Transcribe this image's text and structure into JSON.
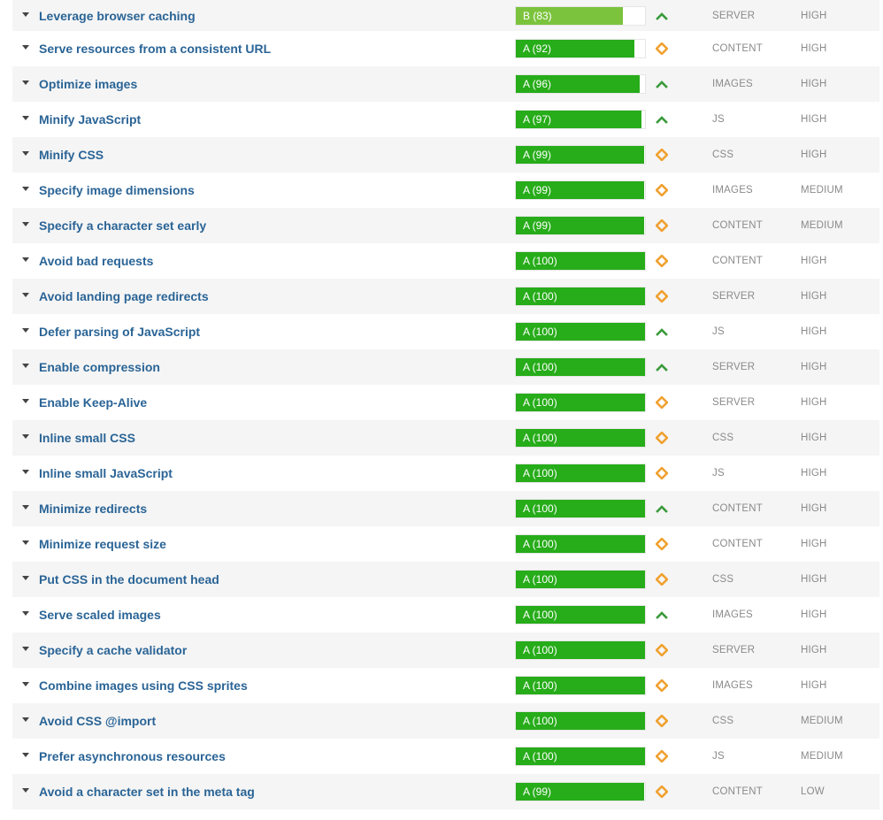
{
  "colors": {
    "grade_a": "#27ac1a",
    "grade_b": "#7cc33d",
    "trend_up": "#3a9a3a",
    "trend_neutral": "#f0a130",
    "link": "#2a6496"
  },
  "rules": [
    {
      "name": "Leverage browser caching",
      "grade": "B (83)",
      "score": 83,
      "trend": "up-arrow-icon",
      "type": "SERVER",
      "priority": "HIGH"
    },
    {
      "name": "Serve resources from a consistent URL",
      "grade": "A (92)",
      "score": 92,
      "trend": "diamond-icon",
      "type": "CONTENT",
      "priority": "HIGH"
    },
    {
      "name": "Optimize images",
      "grade": "A (96)",
      "score": 96,
      "trend": "up-arrow-icon",
      "type": "IMAGES",
      "priority": "HIGH"
    },
    {
      "name": "Minify JavaScript",
      "grade": "A (97)",
      "score": 97,
      "trend": "up-arrow-icon",
      "type": "JS",
      "priority": "HIGH"
    },
    {
      "name": "Minify CSS",
      "grade": "A (99)",
      "score": 99,
      "trend": "diamond-icon",
      "type": "CSS",
      "priority": "HIGH"
    },
    {
      "name": "Specify image dimensions",
      "grade": "A (99)",
      "score": 99,
      "trend": "diamond-icon",
      "type": "IMAGES",
      "priority": "MEDIUM"
    },
    {
      "name": "Specify a character set early",
      "grade": "A (99)",
      "score": 99,
      "trend": "diamond-icon",
      "type": "CONTENT",
      "priority": "MEDIUM"
    },
    {
      "name": "Avoid bad requests",
      "grade": "A (100)",
      "score": 100,
      "trend": "diamond-icon",
      "type": "CONTENT",
      "priority": "HIGH"
    },
    {
      "name": "Avoid landing page redirects",
      "grade": "A (100)",
      "score": 100,
      "trend": "diamond-icon",
      "type": "SERVER",
      "priority": "HIGH"
    },
    {
      "name": "Defer parsing of JavaScript",
      "grade": "A (100)",
      "score": 100,
      "trend": "up-arrow-icon",
      "type": "JS",
      "priority": "HIGH"
    },
    {
      "name": "Enable compression",
      "grade": "A (100)",
      "score": 100,
      "trend": "up-arrow-icon",
      "type": "SERVER",
      "priority": "HIGH"
    },
    {
      "name": "Enable Keep-Alive",
      "grade": "A (100)",
      "score": 100,
      "trend": "diamond-icon",
      "type": "SERVER",
      "priority": "HIGH"
    },
    {
      "name": "Inline small CSS",
      "grade": "A (100)",
      "score": 100,
      "trend": "diamond-icon",
      "type": "CSS",
      "priority": "HIGH"
    },
    {
      "name": "Inline small JavaScript",
      "grade": "A (100)",
      "score": 100,
      "trend": "diamond-icon",
      "type": "JS",
      "priority": "HIGH"
    },
    {
      "name": "Minimize redirects",
      "grade": "A (100)",
      "score": 100,
      "trend": "up-arrow-icon",
      "type": "CONTENT",
      "priority": "HIGH"
    },
    {
      "name": "Minimize request size",
      "grade": "A (100)",
      "score": 100,
      "trend": "diamond-icon",
      "type": "CONTENT",
      "priority": "HIGH"
    },
    {
      "name": "Put CSS in the document head",
      "grade": "A (100)",
      "score": 100,
      "trend": "diamond-icon",
      "type": "CSS",
      "priority": "HIGH"
    },
    {
      "name": "Serve scaled images",
      "grade": "A (100)",
      "score": 100,
      "trend": "up-arrow-icon",
      "type": "IMAGES",
      "priority": "HIGH"
    },
    {
      "name": "Specify a cache validator",
      "grade": "A (100)",
      "score": 100,
      "trend": "diamond-icon",
      "type": "SERVER",
      "priority": "HIGH"
    },
    {
      "name": "Combine images using CSS sprites",
      "grade": "A (100)",
      "score": 100,
      "trend": "diamond-icon",
      "type": "IMAGES",
      "priority": "HIGH"
    },
    {
      "name": "Avoid CSS @import",
      "grade": "A (100)",
      "score": 100,
      "trend": "diamond-icon",
      "type": "CSS",
      "priority": "MEDIUM"
    },
    {
      "name": "Prefer asynchronous resources",
      "grade": "A (100)",
      "score": 100,
      "trend": "diamond-icon",
      "type": "JS",
      "priority": "MEDIUM"
    },
    {
      "name": "Avoid a character set in the meta tag",
      "grade": "A (99)",
      "score": 99,
      "trend": "diamond-icon",
      "type": "CONTENT",
      "priority": "LOW"
    }
  ]
}
